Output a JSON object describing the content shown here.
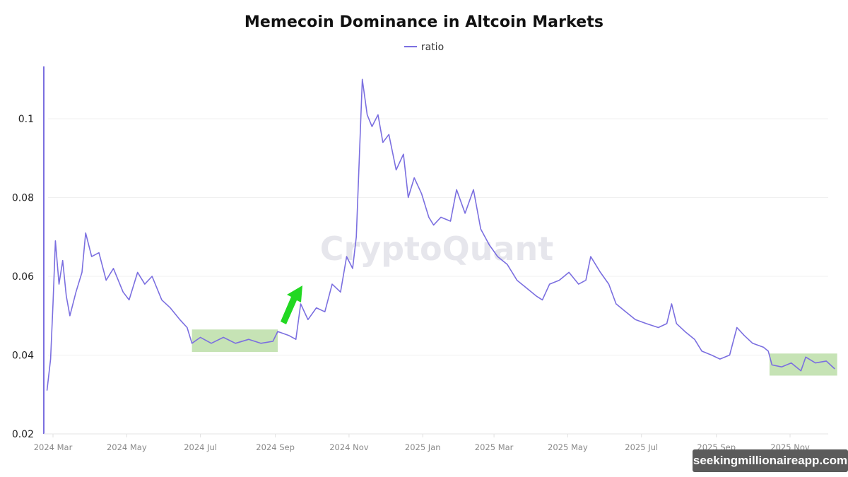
{
  "chart_data": {
    "type": "line",
    "title": "Memecoin Dominance in Altcoin Markets",
    "legend": [
      "ratio"
    ],
    "legend_position": "top-center",
    "xlabel": "",
    "ylabel": "",
    "ylim": [
      0.02,
      0.113
    ],
    "yticks": [
      "0.02",
      "0.04",
      "0.06",
      "0.08",
      "0.1"
    ],
    "xticks": [
      "2024 Mar",
      "2024 May",
      "2024 Jul",
      "2024 Sep",
      "2024 Nov",
      "2025 Jan",
      "2025 Mar",
      "2025 May",
      "2025 Jul",
      "2025 Sep",
      "2025 Nov"
    ],
    "grid": "horizontal",
    "series": [
      {
        "name": "ratio",
        "color": "#7b6fe0",
        "points": [
          [
            "2024-02-25",
            0.031
          ],
          [
            "2024-02-28",
            0.039
          ],
          [
            "2024-03-01",
            0.053
          ],
          [
            "2024-03-03",
            0.069
          ],
          [
            "2024-03-06",
            0.058
          ],
          [
            "2024-03-09",
            0.064
          ],
          [
            "2024-03-12",
            0.055
          ],
          [
            "2024-03-15",
            0.05
          ],
          [
            "2024-03-20",
            0.056
          ],
          [
            "2024-03-25",
            0.061
          ],
          [
            "2024-03-28",
            0.071
          ],
          [
            "2024-04-02",
            0.065
          ],
          [
            "2024-04-08",
            0.066
          ],
          [
            "2024-04-14",
            0.059
          ],
          [
            "2024-04-20",
            0.062
          ],
          [
            "2024-04-28",
            0.056
          ],
          [
            "2024-05-03",
            0.054
          ],
          [
            "2024-05-10",
            0.061
          ],
          [
            "2024-05-16",
            0.058
          ],
          [
            "2024-05-22",
            0.06
          ],
          [
            "2024-05-30",
            0.054
          ],
          [
            "2024-06-06",
            0.052
          ],
          [
            "2024-06-14",
            0.049
          ],
          [
            "2024-06-20",
            0.047
          ],
          [
            "2024-06-24",
            0.043
          ],
          [
            "2024-07-01",
            0.0445
          ],
          [
            "2024-07-10",
            0.043
          ],
          [
            "2024-07-20",
            0.0445
          ],
          [
            "2024-07-30",
            0.043
          ],
          [
            "2024-08-10",
            0.044
          ],
          [
            "2024-08-20",
            0.043
          ],
          [
            "2024-08-30",
            0.0435
          ],
          [
            "2024-09-03",
            0.046
          ],
          [
            "2024-09-12",
            0.045
          ],
          [
            "2024-09-18",
            0.044
          ],
          [
            "2024-09-22",
            0.053
          ],
          [
            "2024-09-28",
            0.049
          ],
          [
            "2024-10-05",
            0.052
          ],
          [
            "2024-10-12",
            0.051
          ],
          [
            "2024-10-18",
            0.058
          ],
          [
            "2024-10-25",
            0.056
          ],
          [
            "2024-10-30",
            0.065
          ],
          [
            "2024-11-04",
            0.062
          ],
          [
            "2024-11-07",
            0.07
          ],
          [
            "2024-11-12",
            0.11
          ],
          [
            "2024-11-16",
            0.101
          ],
          [
            "2024-11-20",
            0.098
          ],
          [
            "2024-11-25",
            0.101
          ],
          [
            "2024-11-29",
            0.094
          ],
          [
            "2024-12-04",
            0.096
          ],
          [
            "2024-12-10",
            0.087
          ],
          [
            "2024-12-16",
            0.091
          ],
          [
            "2024-12-20",
            0.08
          ],
          [
            "2024-12-25",
            0.085
          ],
          [
            "2024-12-31",
            0.081
          ],
          [
            "2025-01-06",
            0.075
          ],
          [
            "2025-01-10",
            0.073
          ],
          [
            "2025-01-16",
            0.075
          ],
          [
            "2025-01-24",
            0.074
          ],
          [
            "2025-01-29",
            0.082
          ],
          [
            "2025-02-05",
            0.076
          ],
          [
            "2025-02-12",
            0.082
          ],
          [
            "2025-02-18",
            0.072
          ],
          [
            "2025-02-25",
            0.068
          ],
          [
            "2025-03-04",
            0.065
          ],
          [
            "2025-03-12",
            0.063
          ],
          [
            "2025-03-20",
            0.059
          ],
          [
            "2025-03-28",
            0.057
          ],
          [
            "2025-04-05",
            0.055
          ],
          [
            "2025-04-10",
            0.054
          ],
          [
            "2025-04-16",
            0.058
          ],
          [
            "2025-04-24",
            0.059
          ],
          [
            "2025-05-02",
            0.061
          ],
          [
            "2025-05-10",
            0.058
          ],
          [
            "2025-05-16",
            0.059
          ],
          [
            "2025-05-20",
            0.065
          ],
          [
            "2025-05-28",
            0.061
          ],
          [
            "2025-06-04",
            0.058
          ],
          [
            "2025-06-10",
            0.053
          ],
          [
            "2025-06-18",
            0.051
          ],
          [
            "2025-06-26",
            0.049
          ],
          [
            "2025-07-05",
            0.048
          ],
          [
            "2025-07-15",
            0.047
          ],
          [
            "2025-07-22",
            0.048
          ],
          [
            "2025-07-26",
            0.053
          ],
          [
            "2025-07-30",
            0.048
          ],
          [
            "2025-08-06",
            0.046
          ],
          [
            "2025-08-14",
            0.044
          ],
          [
            "2025-08-20",
            0.041
          ],
          [
            "2025-08-28",
            0.04
          ],
          [
            "2025-09-04",
            0.039
          ],
          [
            "2025-09-12",
            0.04
          ],
          [
            "2025-09-18",
            0.047
          ],
          [
            "2025-09-24",
            0.045
          ],
          [
            "2025-10-01",
            0.043
          ],
          [
            "2025-10-10",
            0.042
          ],
          [
            "2025-10-14",
            0.041
          ],
          [
            "2025-10-17",
            0.0375
          ],
          [
            "2025-10-25",
            0.037
          ],
          [
            "2025-11-02",
            0.038
          ],
          [
            "2025-11-10",
            0.036
          ],
          [
            "2025-11-14",
            0.0395
          ],
          [
            "2025-11-22",
            0.038
          ],
          [
            "2025-12-01",
            0.0385
          ],
          [
            "2025-12-08",
            0.0365
          ]
        ]
      }
    ],
    "annotations": [
      {
        "type": "highlight-box",
        "color": "#c6e3b5",
        "range_x": [
          "2024-06-24",
          "2024-09-03"
        ],
        "range_y": [
          0.0408,
          0.0465
        ]
      },
      {
        "type": "highlight-box",
        "color": "#c6e3b5",
        "range_x": [
          "2025-10-15",
          "2025-12-10"
        ],
        "range_y": [
          0.0348,
          0.0404
        ]
      },
      {
        "type": "arrow",
        "color": "#22d822",
        "direction": "up-right",
        "near_x": "2024-09-18"
      }
    ],
    "watermark": "CryptoQuant"
  },
  "attribution": "seekingmillionaireapp.com"
}
